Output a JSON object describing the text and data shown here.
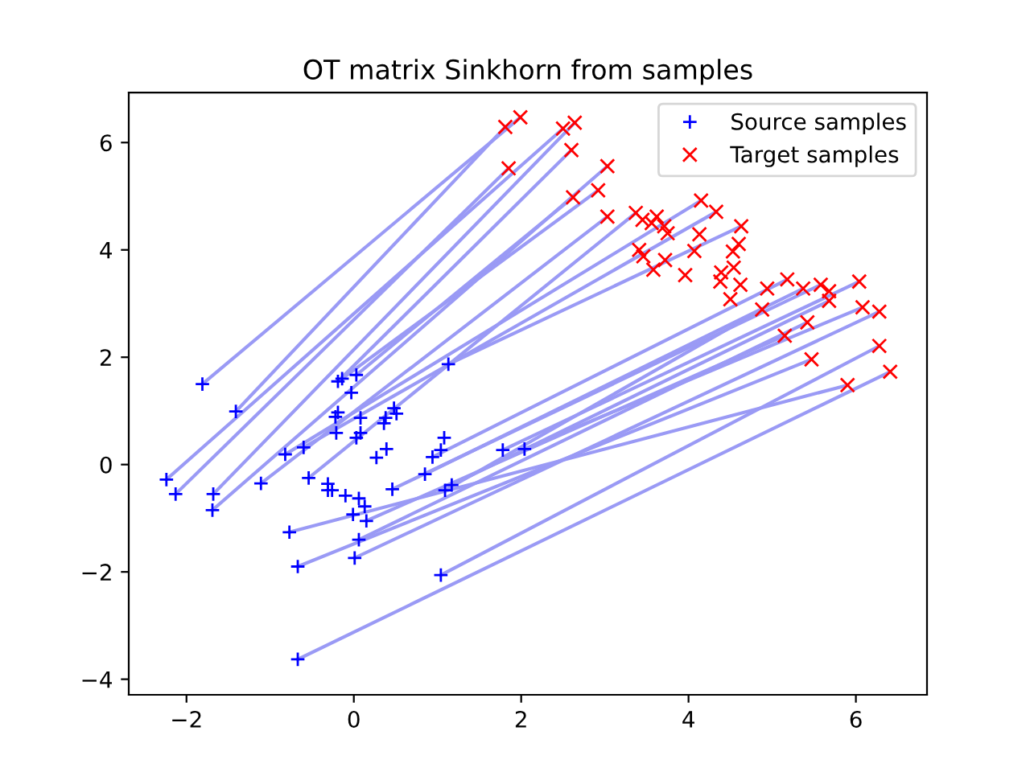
{
  "chart_data": {
    "type": "scatter",
    "title": "OT matrix Sinkhorn from samples",
    "xlim": [
      -2.69,
      6.85
    ],
    "ylim": [
      -4.29,
      6.93
    ],
    "xticks": [
      {
        "value": -2,
        "label": "−2"
      },
      0,
      2,
      4,
      6
    ],
    "yticks": [
      {
        "value": -4,
        "label": "−4"
      },
      {
        "value": -2,
        "label": "−2"
      },
      0,
      2,
      4,
      6
    ],
    "grid": false,
    "legend": "top right",
    "series": [
      {
        "type": "line",
        "color": "#9a9af5",
        "x": [
          -1.81,
          1.99
        ],
        "values": [
          1.5,
          6.47
        ]
      },
      {
        "type": "line",
        "color": "#9a9af5",
        "x": [
          -1.41,
          1.81
        ],
        "values": [
          0.99,
          6.29
        ]
      },
      {
        "type": "line",
        "color": "#9a9af5",
        "x": [
          -2.24,
          2.5
        ],
        "values": [
          -0.28,
          6.26
        ]
      },
      {
        "type": "line",
        "color": "#9a9af5",
        "x": [
          -2.13,
          1.85
        ],
        "values": [
          -0.55,
          5.52
        ]
      },
      {
        "type": "line",
        "color": "#9a9af5",
        "x": [
          -1.68,
          2.64
        ],
        "values": [
          -0.55,
          6.37
        ]
      },
      {
        "type": "line",
        "color": "#9a9af5",
        "x": [
          -1.69,
          3.03
        ],
        "values": [
          -0.85,
          5.56
        ]
      },
      {
        "type": "line",
        "color": "#9a9af5",
        "x": [
          -0.67,
          6.41
        ],
        "values": [
          -3.63,
          1.73
        ]
      },
      {
        "type": "line",
        "color": "#9a9af5",
        "x": [
          1.04,
          6.28
        ],
        "values": [
          -2.06,
          2.21
        ]
      },
      {
        "type": "line",
        "color": "#9a9af5",
        "x": [
          -0.67,
          5.47
        ],
        "values": [
          -1.9,
          1.96
        ]
      },
      {
        "type": "line",
        "color": "#9a9af5",
        "x": [
          -0.77,
          5.9
        ],
        "values": [
          -1.26,
          1.48
        ]
      },
      {
        "type": "line",
        "color": "#9a9af5",
        "x": [
          0.01,
          6.28
        ],
        "values": [
          -1.74,
          2.85
        ]
      },
      {
        "type": "line",
        "color": "#9a9af5",
        "x": [
          0.06,
          5.42
        ],
        "values": [
          -1.4,
          2.65
        ]
      },
      {
        "type": "line",
        "color": "#9a9af5",
        "x": [
          -0.82,
          4.15
        ],
        "values": [
          0.19,
          4.92
        ]
      },
      {
        "type": "line",
        "color": "#9a9af5",
        "x": [
          -0.6,
          4.33
        ],
        "values": [
          0.32,
          4.71
        ]
      },
      {
        "type": "line",
        "color": "#9a9af5",
        "x": [
          1.78,
          6.04
        ],
        "values": [
          0.27,
          3.41
        ]
      },
      {
        "type": "line",
        "color": "#9a9af5",
        "x": [
          2.04,
          6.08
        ],
        "values": [
          0.29,
          2.93
        ]
      },
      {
        "type": "line",
        "color": "#9a9af5",
        "x": [
          1.13,
          4.63
        ],
        "values": [
          1.87,
          4.44
        ]
      },
      {
        "type": "line",
        "color": "#9a9af5",
        "x": [
          -0.19,
          2.6
        ],
        "values": [
          1.55,
          5.86
        ]
      },
      {
        "type": "line",
        "color": "#9a9af5",
        "x": [
          -0.14,
          2.92
        ],
        "values": [
          1.6,
          5.11
        ]
      },
      {
        "type": "line",
        "color": "#9a9af5",
        "x": [
          0.03,
          2.62
        ],
        "values": [
          1.67,
          4.98
        ]
      },
      {
        "type": "line",
        "color": "#9a9af5",
        "x": [
          -1.11,
          3.03
        ],
        "values": [
          -0.35,
          4.62
        ]
      },
      {
        "type": "line",
        "color": "#9a9af5",
        "x": [
          -0.54,
          3.37
        ],
        "values": [
          -0.25,
          4.69
        ]
      },
      {
        "type": "line",
        "color": "#9a9af5",
        "x": [
          0.15,
          5.15
        ],
        "values": [
          -1.05,
          2.4
        ]
      },
      {
        "type": "line",
        "color": "#9a9af5",
        "x": [
          1.17,
          5.68
        ],
        "values": [
          -0.38,
          3.05
        ]
      },
      {
        "type": "line",
        "color": "#9a9af5",
        "x": [
          1.09,
          4.88
        ],
        "values": [
          -0.48,
          2.89
        ]
      },
      {
        "type": "line",
        "color": "#9a9af5",
        "x": [
          0.46,
          5.58
        ],
        "values": [
          -0.46,
          3.35
        ]
      },
      {
        "type": "line",
        "color": "#9a9af5",
        "x": [
          0.85,
          5.37
        ],
        "values": [
          -0.18,
          3.28
        ]
      },
      {
        "type": "line",
        "color": "#9a9af5",
        "x": [
          0.94,
          5.18
        ],
        "values": [
          0.14,
          3.45
        ]
      },
      {
        "name": "Source samples",
        "color": "#0000ff",
        "marker": "plus",
        "x": [
          -1.81,
          -1.41,
          -2.24,
          -2.13,
          -1.68,
          -1.69,
          -1.11,
          -0.82,
          -0.6,
          -0.54,
          -0.77,
          -0.67,
          -0.67,
          -0.31,
          -0.31,
          -0.26,
          -0.19,
          -0.14,
          0.03,
          -0.03,
          -0.22,
          -0.19,
          -0.21,
          0.03,
          0.08,
          0.08,
          -0.1,
          0.06,
          0.13,
          -0.01,
          0.15,
          0.06,
          0.01,
          0.36,
          0.38,
          0.48,
          0.51,
          0.39,
          0.27,
          0.46,
          0.85,
          0.94,
          1.04,
          1.08,
          1.13,
          1.09,
          1.17,
          1.04,
          1.78,
          2.04
        ],
        "values": [
          1.5,
          0.99,
          -0.28,
          -0.55,
          -0.55,
          -0.85,
          -0.35,
          0.19,
          0.32,
          -0.25,
          -1.26,
          -1.9,
          -3.63,
          -0.36,
          -0.48,
          -0.48,
          1.55,
          1.6,
          1.67,
          1.34,
          0.89,
          0.97,
          0.59,
          0.5,
          0.59,
          0.87,
          -0.58,
          -0.63,
          -0.78,
          -0.93,
          -1.05,
          -1.4,
          -1.74,
          0.77,
          0.87,
          1.05,
          0.95,
          0.29,
          0.13,
          -0.46,
          -0.18,
          0.14,
          0.27,
          0.5,
          1.87,
          -0.48,
          -0.38,
          -2.06,
          0.27,
          0.29
        ]
      },
      {
        "name": "Target samples",
        "color": "#ff0000",
        "marker": "cross",
        "x": [
          1.81,
          1.99,
          2.5,
          2.64,
          1.85,
          2.6,
          3.03,
          2.62,
          2.92,
          3.03,
          3.37,
          3.45,
          3.56,
          3.62,
          3.71,
          3.75,
          4.15,
          4.33,
          4.63,
          4.13,
          3.41,
          3.46,
          3.72,
          3.58,
          4.07,
          4.6,
          4.53,
          3.96,
          4.39,
          4.54,
          4.38,
          4.62,
          4.5,
          4.94,
          5.18,
          5.37,
          5.58,
          5.68,
          5.68,
          6.04,
          4.88,
          6.08,
          6.28,
          5.42,
          5.15,
          6.28,
          5.47,
          6.41,
          5.9
        ],
        "values": [
          6.29,
          6.47,
          6.26,
          6.37,
          5.52,
          5.86,
          5.56,
          4.98,
          5.11,
          4.62,
          4.69,
          4.56,
          4.5,
          4.62,
          4.44,
          4.31,
          4.92,
          4.71,
          4.44,
          4.29,
          4.0,
          3.88,
          3.81,
          3.63,
          3.98,
          4.11,
          3.97,
          3.53,
          3.58,
          3.67,
          3.41,
          3.35,
          3.08,
          3.28,
          3.45,
          3.28,
          3.35,
          3.23,
          3.05,
          3.41,
          2.89,
          2.93,
          2.85,
          2.65,
          2.4,
          2.21,
          1.96,
          1.73,
          1.48
        ]
      }
    ]
  }
}
